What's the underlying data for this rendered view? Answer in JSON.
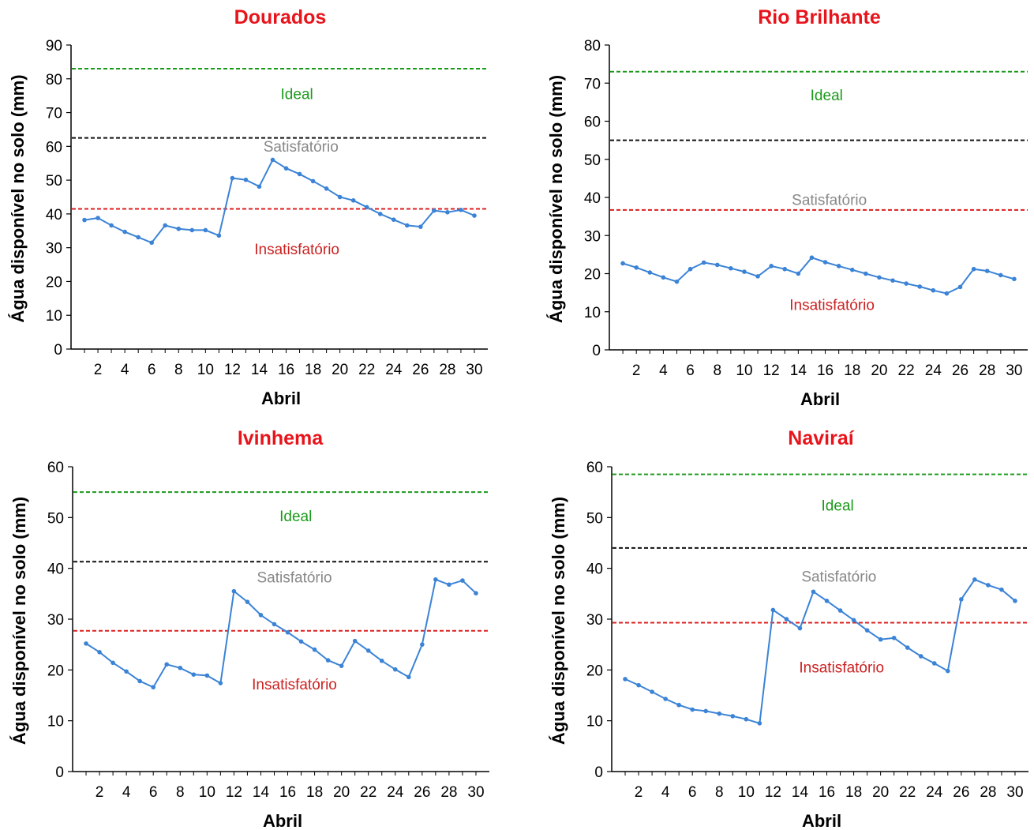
{
  "colors": {
    "title": "#e8141b",
    "series": "#3b83d6",
    "ideal_line": "#1a9a1a",
    "satisfatorio_line": "#111111",
    "insatisfatorio_line": "#dd1f1f",
    "label_ideal": "#1a9a1a",
    "label_satisfatorio": "#888888",
    "label_insatisfatorio": "#cc2222"
  },
  "chart_data": [
    {
      "type": "line",
      "title": "Dourados",
      "xlabel": "Abril",
      "ylabel": "Água disponível no solo (mm)",
      "xlim": [
        0,
        31
      ],
      "ylim": [
        0,
        90
      ],
      "yticks": [
        0,
        10,
        20,
        30,
        40,
        50,
        60,
        70,
        80,
        90
      ],
      "xticks": [
        2,
        4,
        6,
        8,
        10,
        12,
        14,
        16,
        18,
        20,
        22,
        24,
        26,
        28,
        30
      ],
      "x": [
        1,
        2,
        3,
        4,
        5,
        6,
        7,
        8,
        9,
        10,
        11,
        12,
        13,
        14,
        15,
        16,
        17,
        18,
        19,
        20,
        21,
        22,
        23,
        24,
        25,
        26,
        27,
        28,
        29,
        30
      ],
      "values": [
        38.2,
        38.8,
        36.6,
        34.7,
        33.1,
        31.5,
        36.6,
        35.6,
        35.2,
        35.2,
        33.6,
        50.6,
        50.1,
        48.1,
        56.0,
        53.5,
        51.8,
        49.7,
        47.5,
        45.0,
        44.0,
        42.0,
        40.0,
        38.3,
        36.6,
        36.2,
        41.0,
        40.5,
        41.2,
        39.5
      ],
      "thresholds": {
        "ideal": 83,
        "satisfatorio": 62.5,
        "insatisfatorio": 41.5
      },
      "labels": [
        {
          "text": "Ideal",
          "class": "ideal",
          "x": 16.8,
          "y": 74
        },
        {
          "text": "Satisfatório",
          "class": "satisfatorio",
          "x": 17.1,
          "y": 58.5
        },
        {
          "text": "Insatisfatório",
          "class": "insatisfatorio",
          "x": 16.8,
          "y": 28
        }
      ]
    },
    {
      "type": "line",
      "title": "Rio Brilhante",
      "xlabel": "Abril",
      "ylabel": "Água disponível no solo (mm)",
      "xlim": [
        0,
        31
      ],
      "ylim": [
        0,
        80
      ],
      "yticks": [
        0,
        10,
        20,
        30,
        40,
        50,
        60,
        70,
        80
      ],
      "xticks": [
        2,
        4,
        6,
        8,
        10,
        12,
        14,
        16,
        18,
        20,
        22,
        24,
        26,
        28,
        30
      ],
      "x": [
        1,
        2,
        3,
        4,
        5,
        6,
        7,
        8,
        9,
        10,
        11,
        12,
        13,
        14,
        15,
        16,
        17,
        18,
        19,
        20,
        21,
        22,
        23,
        24,
        25,
        26,
        27,
        28,
        29,
        30
      ],
      "values": [
        22.7,
        21.6,
        20.3,
        19.0,
        17.9,
        21.2,
        22.9,
        22.3,
        21.4,
        20.5,
        19.3,
        22.0,
        21.2,
        20.0,
        24.2,
        23.0,
        22.0,
        21.0,
        20.0,
        19.0,
        18.2,
        17.4,
        16.6,
        15.6,
        14.8,
        16.5,
        21.2,
        20.7,
        19.6,
        18.6
      ],
      "thresholds": {
        "ideal": 73,
        "satisfatorio": 55,
        "insatisfatorio": 36.7
      },
      "labels": [
        {
          "text": "Ideal",
          "class": "ideal",
          "x": 16.1,
          "y": 65.5
        },
        {
          "text": "Satisfatório",
          "class": "satisfatorio",
          "x": 16.3,
          "y": 38
        },
        {
          "text": "Insatisfatório",
          "class": "insatisfatorio",
          "x": 16.5,
          "y": 10.5
        }
      ]
    },
    {
      "type": "line",
      "title": "Ivinhema",
      "xlabel": "Abril",
      "ylabel": "Água disponível no solo (mm)",
      "xlim": [
        0,
        31
      ],
      "ylim": [
        0,
        60
      ],
      "yticks": [
        0,
        10,
        20,
        30,
        40,
        50,
        60
      ],
      "xticks": [
        2,
        4,
        6,
        8,
        10,
        12,
        14,
        16,
        18,
        20,
        22,
        24,
        26,
        28,
        30
      ],
      "x": [
        1,
        2,
        3,
        4,
        5,
        6,
        7,
        8,
        9,
        10,
        11,
        12,
        13,
        14,
        15,
        16,
        17,
        18,
        19,
        20,
        21,
        22,
        23,
        24,
        25,
        26,
        27,
        28,
        29,
        30
      ],
      "values": [
        25.2,
        23.5,
        21.4,
        19.7,
        17.8,
        16.6,
        21.1,
        20.4,
        19.1,
        18.9,
        17.4,
        35.5,
        33.4,
        30.8,
        29.0,
        27.4,
        25.6,
        24.0,
        21.9,
        20.8,
        25.7,
        23.8,
        21.8,
        20.1,
        18.6,
        25.0,
        37.8,
        36.8,
        37.6,
        35.1
      ],
      "thresholds": {
        "ideal": 55,
        "satisfatorio": 41.3,
        "insatisfatorio": 27.7
      },
      "labels": [
        {
          "text": "Ideal",
          "class": "ideal",
          "x": 16.6,
          "y": 49.3
        },
        {
          "text": "Satisfatório",
          "class": "satisfatorio",
          "x": 16.5,
          "y": 37.2
        },
        {
          "text": "Insatisfatório",
          "class": "insatisfatorio",
          "x": 16.5,
          "y": 16.2
        }
      ]
    },
    {
      "type": "line",
      "title": "Naviraí",
      "xlabel": "Abril",
      "ylabel": "Água disponível no solo (mm)",
      "xlim": [
        0,
        31
      ],
      "ylim": [
        0,
        60
      ],
      "yticks": [
        0,
        10,
        20,
        30,
        40,
        50,
        60
      ],
      "xticks": [
        2,
        4,
        6,
        8,
        10,
        12,
        14,
        16,
        18,
        20,
        22,
        24,
        26,
        28,
        30
      ],
      "x": [
        1,
        2,
        3,
        4,
        5,
        6,
        7,
        8,
        9,
        10,
        11,
        12,
        13,
        14,
        15,
        16,
        17,
        18,
        19,
        20,
        21,
        22,
        23,
        24,
        25,
        26,
        27,
        28,
        29,
        30
      ],
      "values": [
        18.2,
        17.0,
        15.7,
        14.3,
        13.1,
        12.2,
        11.9,
        11.4,
        10.9,
        10.3,
        9.5,
        31.8,
        30.0,
        28.2,
        35.4,
        33.6,
        31.7,
        29.8,
        27.8,
        26.0,
        26.3,
        24.4,
        22.7,
        21.3,
        19.8,
        33.9,
        37.8,
        36.7,
        35.8,
        33.6
      ],
      "thresholds": {
        "ideal": 58.5,
        "satisfatorio": 44,
        "insatisfatorio": 29.3
      },
      "labels": [
        {
          "text": "Ideal",
          "class": "ideal",
          "x": 16.8,
          "y": 51.4
        },
        {
          "text": "Satisfatório",
          "class": "satisfatorio",
          "x": 16.9,
          "y": 37.4
        },
        {
          "text": "Insatisfatório",
          "class": "insatisfatorio",
          "x": 17.1,
          "y": 19.5
        }
      ]
    }
  ]
}
